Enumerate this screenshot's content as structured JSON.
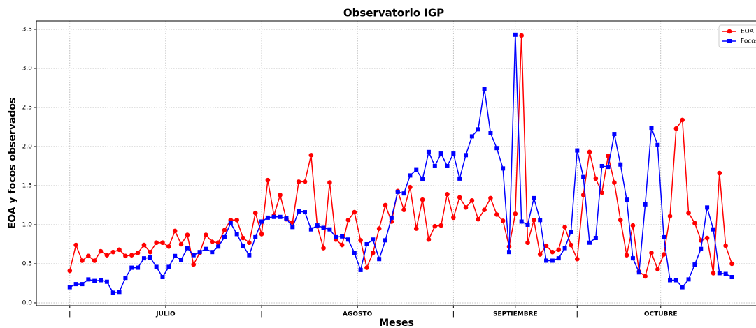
{
  "chart_data": {
    "type": "line",
    "title": "Observatorio IGP",
    "xlabel": "Meses",
    "ylabel": "EOA y focos observados",
    "x": [
      0,
      1,
      2,
      3,
      4,
      5,
      6,
      7,
      8,
      9,
      10,
      11,
      12,
      13,
      14,
      15,
      16,
      17,
      18,
      19,
      20,
      21,
      22,
      23,
      24,
      25,
      26,
      27,
      28,
      29,
      30,
      31,
      32,
      33,
      34,
      35,
      36,
      37,
      38,
      39,
      40,
      41,
      42,
      43,
      44,
      45,
      46,
      47,
      48,
      49,
      50,
      51,
      52,
      53,
      54,
      55,
      56,
      57,
      58,
      59,
      60,
      61,
      62,
      63,
      64,
      65,
      66,
      67,
      68,
      69,
      70,
      71,
      72,
      73,
      74,
      75,
      76,
      77,
      78,
      79,
      80,
      81,
      82,
      83,
      84,
      85,
      86,
      87,
      88,
      89,
      90,
      91,
      92,
      93,
      94,
      95,
      96,
      97,
      98,
      99,
      100,
      101,
      102,
      103,
      104,
      105,
      106,
      107
    ],
    "series": [
      {
        "name": "EOA",
        "color": "#ff0000",
        "marker": "circle",
        "values": [
          0.41,
          0.74,
          0.54,
          0.6,
          0.54,
          0.66,
          0.61,
          0.65,
          0.68,
          0.6,
          0.61,
          0.64,
          0.74,
          0.65,
          0.77,
          0.77,
          0.72,
          0.92,
          0.75,
          0.87,
          0.49,
          0.64,
          0.87,
          0.78,
          0.77,
          0.93,
          1.06,
          1.06,
          0.83,
          0.77,
          1.15,
          0.88,
          1.57,
          1.12,
          1.38,
          1.07,
          1.03,
          1.55,
          1.55,
          1.89,
          0.98,
          0.7,
          1.54,
          0.81,
          0.74,
          1.06,
          1.16,
          0.8,
          0.45,
          0.64,
          0.95,
          1.25,
          1.04,
          1.43,
          1.19,
          1.48,
          0.95,
          1.32,
          0.81,
          0.98,
          0.99,
          1.39,
          1.09,
          1.35,
          1.22,
          1.31,
          1.07,
          1.19,
          1.34,
          1.13,
          1.05,
          0.72,
          1.14,
          3.42,
          0.77,
          1.06,
          0.62,
          0.73,
          0.65,
          0.68,
          0.97,
          0.74,
          0.56,
          1.38,
          1.93,
          1.59,
          1.41,
          1.88,
          1.54,
          1.06,
          0.61,
          0.99,
          0.4,
          0.34,
          0.64,
          0.43,
          0.62,
          1.11,
          2.23,
          2.34,
          1.15,
          1.02,
          0.8,
          0.83,
          0.38,
          1.66,
          0.73,
          0.5
        ]
      },
      {
        "name": "Focos",
        "color": "#0000ff",
        "marker": "square",
        "values": [
          0.2,
          0.24,
          0.24,
          0.3,
          0.28,
          0.29,
          0.27,
          0.13,
          0.14,
          0.32,
          0.45,
          0.45,
          0.57,
          0.58,
          0.46,
          0.33,
          0.46,
          0.6,
          0.55,
          0.7,
          0.61,
          0.65,
          0.69,
          0.65,
          0.72,
          0.84,
          1.02,
          0.88,
          0.73,
          0.61,
          0.84,
          1.04,
          1.09,
          1.1,
          1.1,
          1.08,
          0.97,
          1.17,
          1.16,
          0.94,
          0.99,
          0.96,
          0.94,
          0.84,
          0.85,
          0.81,
          0.64,
          0.42,
          0.75,
          0.81,
          0.56,
          0.8,
          1.09,
          1.42,
          1.4,
          1.63,
          1.7,
          1.58,
          1.93,
          1.75,
          1.91,
          1.75,
          1.91,
          1.59,
          1.89,
          2.13,
          2.22,
          2.74,
          2.17,
          1.98,
          1.72,
          0.65,
          3.43,
          1.04,
          1.0,
          1.34,
          1.06,
          0.54,
          0.54,
          0.57,
          0.7,
          0.91,
          1.95,
          1.61,
          0.77,
          0.83,
          1.75,
          1.74,
          2.16,
          1.77,
          1.32,
          0.57,
          0.39,
          1.26,
          2.24,
          2.02,
          0.84,
          0.29,
          0.29,
          0.2,
          0.3,
          0.49,
          0.69,
          1.22,
          0.94,
          0.38,
          0.37,
          0.33
        ]
      }
    ],
    "xlim": [
      -5.4,
      110.9
    ],
    "ylim": [
      -0.036,
      3.607
    ],
    "xticks": [
      {
        "value": 0,
        "label": "|"
      },
      {
        "value": 15.5,
        "label": "JULIO"
      },
      {
        "value": 31,
        "label": "|"
      },
      {
        "value": 46.5,
        "label": "AGOSTO"
      },
      {
        "value": 62,
        "label": "|"
      },
      {
        "value": 72,
        "label": "SEPTIEMBRE"
      },
      {
        "value": 82,
        "label": "|"
      },
      {
        "value": 95.5,
        "label": "OCTUBRE"
      },
      {
        "value": 107,
        "label": "|"
      }
    ],
    "yticks": [
      {
        "value": 0,
        "label": "0.0"
      },
      0.5,
      {
        "value": 1,
        "label": "1.0"
      },
      1.5,
      {
        "value": 2,
        "label": "2.0"
      },
      2.5,
      {
        "value": 3,
        "label": "3.0"
      },
      3.5
    ],
    "grid": true,
    "legend": "upper right"
  }
}
